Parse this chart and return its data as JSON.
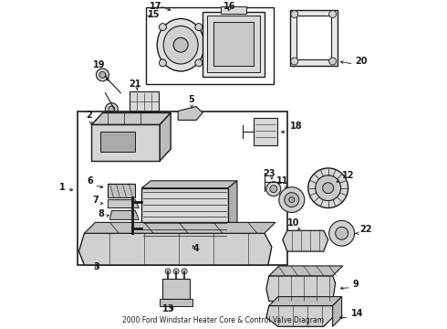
{
  "title": "2000 Ford Windstar Heater Core & Control Valve Diagram",
  "bg_color": "#ffffff",
  "dark": "#1a1a1a",
  "gray": "#888888",
  "light_gray": "#cccccc",
  "mid_gray": "#aaaaaa",
  "fig_w": 4.9,
  "fig_h": 3.6,
  "dpi": 100,
  "label_fontsize": 7.0,
  "title_fontsize": 5.5
}
